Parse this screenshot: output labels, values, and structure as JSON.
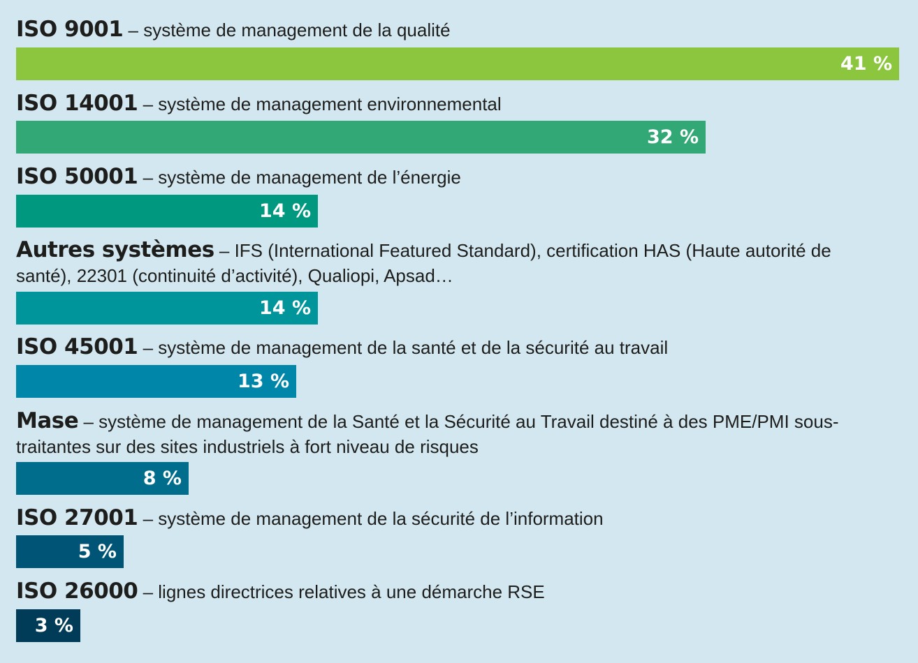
{
  "chart_data": {
    "type": "bar",
    "orientation": "horizontal",
    "unit": "%",
    "xlim": [
      0,
      41
    ],
    "categories": [
      "ISO 9001",
      "ISO 14001",
      "ISO 50001",
      "Autres systèmes",
      "ISO 45001",
      "Mase",
      "ISO 27001",
      "ISO 26000"
    ],
    "values": [
      41,
      32,
      14,
      14,
      13,
      8,
      5,
      3
    ],
    "value_labels": [
      "41 %",
      "32 %",
      "14 %",
      "14 %",
      "13 %",
      "8 %",
      "5 %",
      "3 %"
    ],
    "descriptions": [
      "– système de management de la qualité",
      "– système de management environnemental",
      "– système de management de l’énergie",
      "– IFS (International Featured Standard), certification HAS (Haute autorité de santé), 22301 (continuité d’activité), Qualiopi, Apsad…",
      "– système de management de la santé et de la sécurité au travail",
      "– système de management de la Santé et la Sécurité au Travail destiné à des PME/PMI sous-traitantes sur des sites industriels à fort niveau de risques",
      "– système de management de la sécurité de l’information",
      "– lignes directrices relatives à une démarche RSE"
    ],
    "colors": [
      "#8cc63f",
      "#33a877",
      "#00997f",
      "#00959b",
      "#0086a8",
      "#006d8d",
      "#005476",
      "#003c58"
    ],
    "title": "",
    "xlabel": "",
    "ylabel": "",
    "grid": false,
    "legend": "none"
  }
}
